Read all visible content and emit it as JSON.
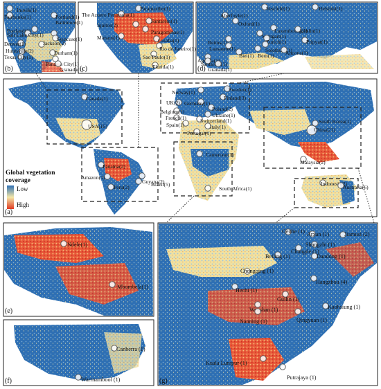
{
  "colors": {
    "ocean": "#ffffff",
    "low": "#2e6fb3",
    "mid": "#f4e7a8",
    "high": "#e03a22",
    "frame": "#222222"
  },
  "legend": {
    "title_line1": "Global vegetation",
    "title_line2": "coverage",
    "low": "Low",
    "high": "High"
  },
  "panels": {
    "a": "(a)",
    "b": "(b)",
    "c": "(c)",
    "d": "(d)",
    "e": "(e)",
    "f": "(f)",
    "g": "(g)"
  },
  "cities": {
    "b": [
      "Inuvik(1)",
      "Fairbanks(1)",
      "Portland(1)",
      "Baltimore(1)",
      "Portland(1)",
      "Syracuse(1)",
      "Salt Lake City(1)",
      "Jackson(2)",
      "Denver(1)",
      "Huntsville(2)",
      "Durham(1)",
      "Texas City(1)",
      "Panama City(1)",
      "Granada(1)"
    ],
    "c": [
      "Paramaribo(1)",
      "The Azuero Peninsula(1)",
      "Santarem(1)",
      "Iquitos(2)",
      "Paragominas(1)",
      "Manaus(1)",
      "Cuiaba(1)",
      "Rio de Janeiro(1)",
      "Sao Paulo(1)",
      "Florida(1)"
    ],
    "d": [
      "Vestfold(1)",
      "Helsinki(1)",
      "Aberfoyle(1)",
      "Oxford(1)",
      "Luxembourg(1)",
      "Lublin(1)",
      "Stuttgart(1)",
      "Pripyat(1)",
      "Reims(1)",
      "Zurich(1)",
      "Lausanne(1)",
      "Solothurn(1)",
      "Bern(1)",
      "Biel(1)",
      "Ancona(1)",
      "Águeda(1)",
      "Santarem(1)",
      "Granada(1)"
    ],
    "a": [
      "Canada(1)",
      "USA(15)",
      "Panama(2)",
      "Guyana(2)",
      "Amazon(1)",
      "Peru(2)",
      "Brazil(5)",
      "Norway(1)",
      "Sweden(1)",
      "Finland(3)",
      "UK(2)",
      "Germany(1)",
      "Belgium(1)",
      "Poland(2)",
      "French(1)",
      "Ukraine(1)",
      "Switzerland(1)",
      "Spain(1)",
      "Italy(1)",
      "Portugal(1)",
      "Cameroon(1)",
      "South Africa(1)",
      "South Korea(1)",
      "China(21)",
      "Malaysia(2)",
      "Indonesia(2)",
      "Australia(6)"
    ],
    "e": [
      "Ndele(1)",
      "Mbombela(1)"
    ],
    "f": [
      "Canberra (1)",
      "Warrnambool (1)"
    ],
    "g": [
      "Genhe (1)",
      "Arxan (1)",
      "Jiamusi (2)",
      "Shangzhi (1)",
      "Changde (1)",
      "Beijing (1)",
      "Dandong (1)",
      "Chongqing (1)",
      "Hangzhou (4)",
      "Hechi (1)",
      "Guilin (1)",
      "Wenshan (1)",
      "Nanning (1)",
      "Qingyuan (1)",
      "Kaohsiung (1)",
      "Kuala Lumpur (1)",
      "Putrajaya (1)"
    ]
  }
}
